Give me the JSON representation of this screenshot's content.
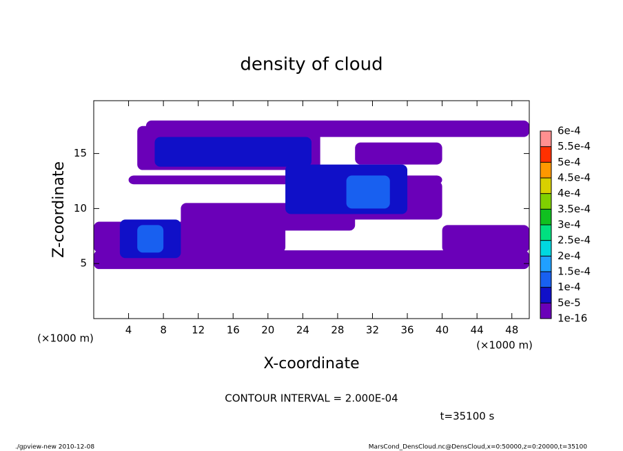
{
  "chart_data": {
    "type": "contour",
    "title": "density of cloud",
    "x_label": "X-coordinate",
    "y_label": "Z-coordinate",
    "x_unit_labels": [
      "(×1000 m)",
      "(×1000 m)"
    ],
    "contour_note": "CONTOUR INTERVAL = 2.000E-04",
    "time_note": "t=35100 s",
    "footer_left": "./gpview-new  2010-12-08",
    "footer_right": "MarsCond_DensCloud.nc@DensCloud,x=0:50000,z=0:20000,t=35100",
    "xlim": [
      0,
      50
    ],
    "ylim": [
      0,
      19.8
    ],
    "xticks": [
      4,
      8,
      12,
      16,
      20,
      24,
      28,
      32,
      36,
      40,
      44,
      48
    ],
    "yticks": [
      5,
      10,
      15
    ],
    "levels": [
      {
        "value": 1e-16,
        "label": "1e-16"
      },
      {
        "value": 5e-05,
        "label": "5e-5"
      },
      {
        "value": 0.0001,
        "label": "1e-4"
      },
      {
        "value": 0.00015,
        "label": "1.5e-4"
      },
      {
        "value": 0.0002,
        "label": "2e-4"
      },
      {
        "value": 0.00025,
        "label": "2.5e-4"
      },
      {
        "value": 0.0003,
        "label": "3e-4"
      },
      {
        "value": 0.00035,
        "label": "3.5e-4"
      },
      {
        "value": 0.0004,
        "label": "4e-4"
      },
      {
        "value": 0.00045,
        "label": "4.5e-4"
      },
      {
        "value": 0.0005,
        "label": "5e-4"
      },
      {
        "value": 0.00055,
        "label": "5.5e-4"
      },
      {
        "value": 0.0006,
        "label": "6e-4"
      }
    ],
    "level_colors": [
      "#6a00b8",
      "#1010c8",
      "#1860f0",
      "#20a0ff",
      "#00d8e0",
      "#00e080",
      "#10c020",
      "#80d000",
      "#d8d000",
      "#ff9800",
      "#ff3000",
      "#ff9090"
    ],
    "regions": [
      {
        "x": [
          0,
          50
        ],
        "z": [
          4.5,
          6.2
        ],
        "level": 0
      },
      {
        "x": [
          0,
          22
        ],
        "z": [
          6,
          8.8
        ],
        "level": 0
      },
      {
        "x": [
          10,
          30
        ],
        "z": [
          8,
          10.5
        ],
        "level": 0
      },
      {
        "x": [
          26,
          40
        ],
        "z": [
          9,
          12.5
        ],
        "level": 0
      },
      {
        "x": [
          4,
          40
        ],
        "z": [
          12.2,
          13
        ],
        "level": 0
      },
      {
        "x": [
          5,
          26
        ],
        "z": [
          13.5,
          17.5
        ],
        "level": 0
      },
      {
        "x": [
          6,
          50
        ],
        "z": [
          16.5,
          18
        ],
        "level": 0
      },
      {
        "x": [
          30,
          40
        ],
        "z": [
          14,
          16
        ],
        "level": 0
      },
      {
        "x": [
          40,
          50
        ],
        "z": [
          6,
          8.5
        ],
        "level": 0
      },
      {
        "x": [
          3,
          10
        ],
        "z": [
          5.5,
          9
        ],
        "level": 1
      },
      {
        "x": [
          7,
          25
        ],
        "z": [
          13.8,
          16.5
        ],
        "level": 1
      },
      {
        "x": [
          22,
          36
        ],
        "z": [
          9.5,
          14
        ],
        "level": 1
      },
      {
        "x": [
          29,
          34
        ],
        "z": [
          10,
          13
        ],
        "level": 2
      },
      {
        "x": [
          5,
          8
        ],
        "z": [
          6,
          8.5
        ],
        "level": 2
      }
    ]
  }
}
